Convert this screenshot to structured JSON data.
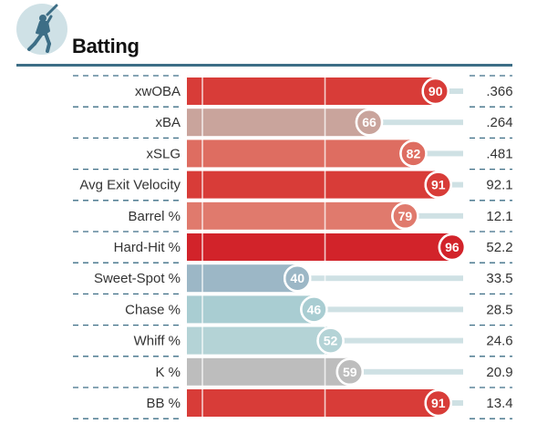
{
  "header": {
    "title": "Batting",
    "icon": "baseball-batter-icon",
    "icon_bg": "#cfe1e6",
    "icon_color": "#3d6e86",
    "rule_color": "#3d6e86"
  },
  "chart_data": {
    "type": "bar",
    "orientation": "horizontal",
    "title": "Batting",
    "xlim": [
      0,
      100
    ],
    "reference_lines": [
      50
    ],
    "categories": [
      "xwOBA",
      "xBA",
      "xSLG",
      "Avg Exit Velocity",
      "Barrel %",
      "Hard-Hit %",
      "Sweet-Spot %",
      "Chase %",
      "Whiff %",
      "K %",
      "BB %"
    ],
    "percentiles": [
      90,
      66,
      82,
      91,
      79,
      96,
      40,
      46,
      52,
      59,
      91
    ],
    "stat_values": [
      ".366",
      ".264",
      ".481",
      "92.1",
      "12.1",
      "52.2",
      "33.5",
      "28.5",
      "24.6",
      "20.9",
      "13.4"
    ],
    "colors": [
      "#d83c38",
      "#c9a49c",
      "#de6d61",
      "#d83c38",
      "#e07a6d",
      "#d2232a",
      "#9cb7c6",
      "#a9cdd2",
      "#b4d3d6",
      "#bdbdbd",
      "#d83c38"
    ],
    "track_color": "#cfe1e4",
    "divider_color": "#3d6e86"
  }
}
